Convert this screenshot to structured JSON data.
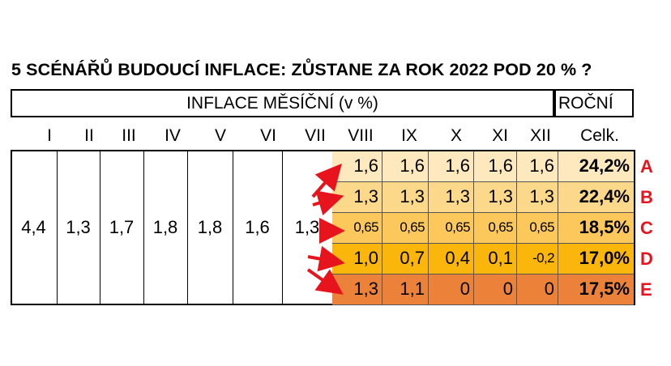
{
  "chart_data": {
    "type": "table",
    "title": "5 SCÉNÁŘŮ BUDOUCÍ INFLACE: ZŮSTANE ZA ROK 2022 POD 20 % ?",
    "header_monthly": "INFLACE MĚSÍČNÍ (v %)",
    "header_annual": "ROČNÍ",
    "months": [
      "I",
      "II",
      "III",
      "IV",
      "V",
      "VI",
      "VII",
      "VIII",
      "IX",
      "X",
      "XI",
      "XII"
    ],
    "total_label": "Celk.",
    "known_values": [
      "4,4",
      "1,3",
      "1,7",
      "1,8",
      "1,8",
      "1,6",
      "1,3"
    ],
    "scenarios": [
      {
        "name": "A",
        "values": [
          "1,6",
          "1,6",
          "1,6",
          "1,6",
          "1,6"
        ],
        "total": "24,2%",
        "color": "#fde9bd"
      },
      {
        "name": "B",
        "values": [
          "1,3",
          "1,3",
          "1,3",
          "1,3",
          "1,3"
        ],
        "total": "22,4%",
        "color": "#fcd88a"
      },
      {
        "name": "C",
        "values": [
          "0,65",
          "0,65",
          "0,65",
          "0,65",
          "0,65"
        ],
        "total": "18,5%",
        "color": "#fcc85c"
      },
      {
        "name": "D",
        "values": [
          "1,0",
          "0,7",
          "0,4",
          "0,1",
          "-0,2"
        ],
        "total": "17,0%",
        "color": "#fbb60b"
      },
      {
        "name": "E",
        "values": [
          "1,3",
          "1,1",
          "0",
          "0",
          "0"
        ],
        "total": "17,5%",
        "color": "#ec823a"
      }
    ],
    "accent_color": "#e8141d"
  }
}
